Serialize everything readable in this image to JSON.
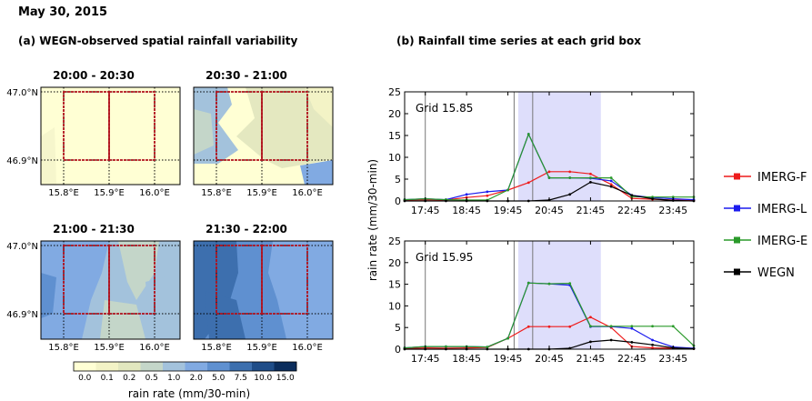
{
  "page_title": "May 30, 2015",
  "left_title": "(a) WEGN-observed spatial rainfall variability",
  "right_title": "(b) Rainfall time series at each grid box",
  "maps": {
    "lat_labels": [
      "47.0°N",
      "46.9°N"
    ],
    "lon_labels": [
      "15.8°E",
      "15.9°E",
      "16.0°E"
    ],
    "panels": [
      {
        "title": "20:00 - 20:30"
      },
      {
        "title": "20:30 - 21:00"
      },
      {
        "title": "21:00 - 21:30"
      },
      {
        "title": "21:30 - 22:00"
      }
    ]
  },
  "colorbar": {
    "ticks": [
      "0.0",
      "0.1",
      "0.2",
      "0.5",
      "1.0",
      "2.0",
      "5.0",
      "7.5",
      "10.0",
      "15.0"
    ],
    "colors": [
      "#ffffd4",
      "#f3f3c6",
      "#e2e7bf",
      "#c4d6c9",
      "#a3c2dc",
      "#81aae2",
      "#5f90d0",
      "#3d6fae",
      "#1f4d88",
      "#0b2d5c"
    ],
    "label": "rain rate (mm/30-min)"
  },
  "chart_data": {
    "type": "line",
    "ylabel": "rain rate (mm/30-min)",
    "xtick_labels": [
      "17:45",
      "18:45",
      "19:45",
      "20:45",
      "21:45",
      "22:45",
      "23:45"
    ],
    "x": [
      "17:15",
      "17:45",
      "18:15",
      "18:45",
      "19:15",
      "19:45",
      "20:15",
      "20:45",
      "21:15",
      "21:45",
      "22:15",
      "22:45",
      "23:15",
      "23:45",
      "24:15"
    ],
    "ylim": [
      0,
      25
    ],
    "yticks": [
      0,
      5,
      10,
      15,
      20,
      25
    ],
    "legend": [
      "IMERG-F",
      "IMERG-L",
      "IMERG-E",
      "WEGN"
    ],
    "colors": {
      "IMERG-F": "#ee1c1c",
      "IMERG-L": "#1c1cee",
      "IMERG-E": "#2a9a2a",
      "WEGN": "#000000"
    },
    "subplots": [
      {
        "label": "Grid 15.85",
        "series": [
          {
            "name": "IMERG-F",
            "values": [
              0.2,
              0.3,
              0.2,
              0.8,
              1.2,
              2.5,
              4.2,
              6.7,
              6.7,
              6.2,
              3.8,
              0.6,
              0.4,
              0.2,
              0.1
            ]
          },
          {
            "name": "IMERG-L",
            "values": [
              0.3,
              0.5,
              0.3,
              1.5,
              2.1,
              2.5,
              15.3,
              5.3,
              5.3,
              5.2,
              4.6,
              1.3,
              0.8,
              0.5,
              0.3
            ]
          },
          {
            "name": "IMERG-E",
            "values": [
              0.3,
              0.5,
              0.3,
              0.2,
              0.2,
              2.5,
              15.3,
              5.3,
              5.3,
              5.3,
              5.3,
              1.0,
              0.9,
              0.9,
              0.9
            ]
          },
          {
            "name": "WEGN",
            "values": [
              0.0,
              0.0,
              0.0,
              0.0,
              0.0,
              0.0,
              0.0,
              0.2,
              1.5,
              4.3,
              3.3,
              1.3,
              0.5,
              0.1,
              0.0
            ]
          }
        ]
      },
      {
        "label": "Grid 15.95",
        "series": [
          {
            "name": "IMERG-F",
            "values": [
              0.1,
              0.3,
              0.2,
              0.3,
              0.4,
              2.5,
              5.2,
              5.2,
              5.2,
              7.4,
              5.0,
              0.6,
              0.3,
              0.2,
              0.1
            ]
          },
          {
            "name": "IMERG-L",
            "values": [
              0.3,
              0.6,
              0.6,
              0.6,
              0.5,
              2.5,
              15.3,
              15.1,
              14.8,
              5.2,
              5.2,
              4.8,
              2.1,
              0.5,
              0.2
            ]
          },
          {
            "name": "IMERG-E",
            "values": [
              0.3,
              0.6,
              0.6,
              0.6,
              0.5,
              2.5,
              15.3,
              15.1,
              15.2,
              5.3,
              5.3,
              5.3,
              5.3,
              5.3,
              0.8
            ]
          },
          {
            "name": "WEGN",
            "values": [
              0.0,
              0.0,
              0.0,
              0.0,
              0.0,
              0.0,
              0.0,
              0.0,
              0.2,
              1.7,
              2.1,
              1.6,
              1.0,
              0.3,
              0.1
            ]
          }
        ]
      }
    ]
  }
}
